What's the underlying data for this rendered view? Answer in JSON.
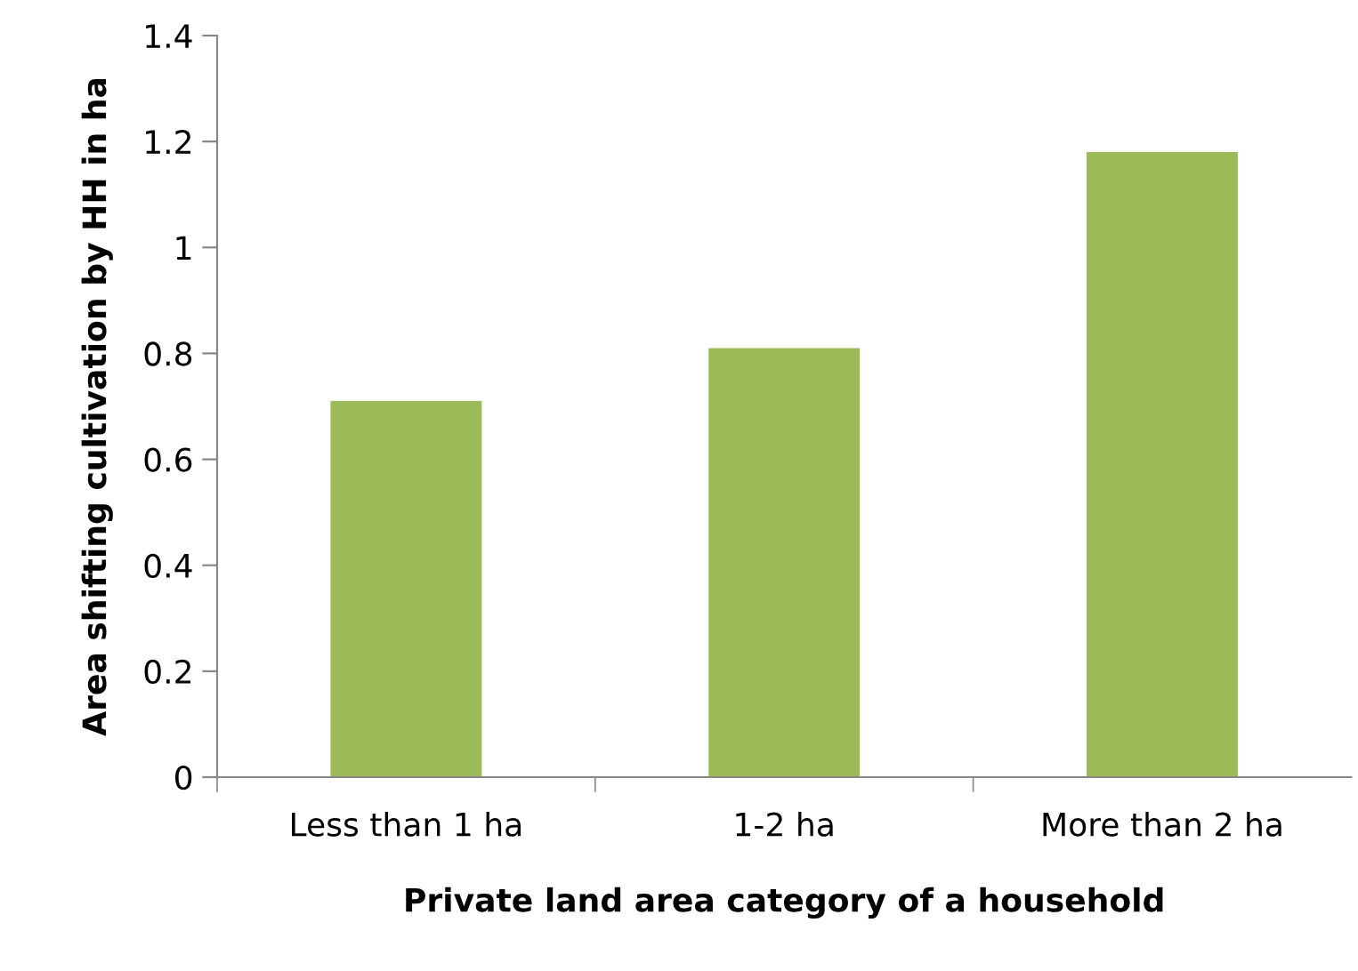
{
  "chart_data": {
    "type": "bar",
    "xlabel": "Private land area category of a household",
    "ylabel": "Area shifting cultivation by HH in ha",
    "categories": [
      "Less than 1 ha",
      "1-2 ha",
      "More than 2 ha"
    ],
    "values": [
      0.71,
      0.81,
      1.18
    ],
    "color": "#9bbb59",
    "ylim": [
      0,
      1.4
    ],
    "yticks": [
      {
        "value": 0,
        "label": "0"
      },
      0.2,
      0.4,
      0.6,
      0.8,
      {
        "value": 1,
        "label": "1"
      },
      1.2,
      1.4
    ],
    "grid": false,
    "legend": false
  }
}
